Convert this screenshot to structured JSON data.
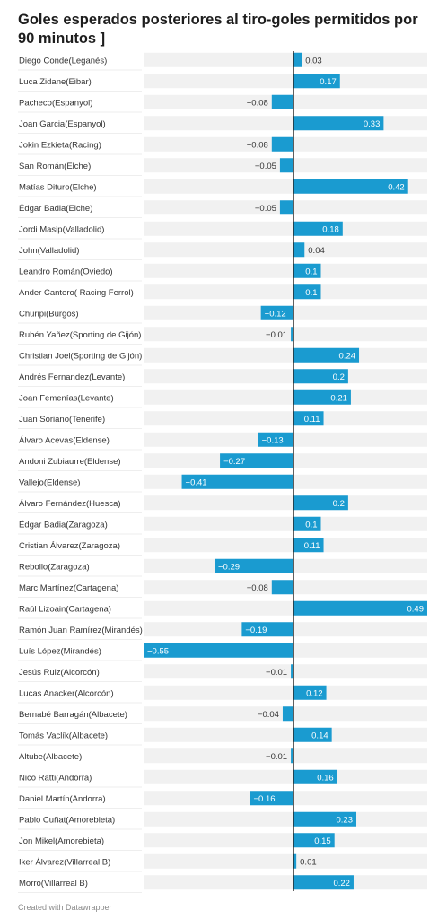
{
  "title": "Goles esperados posteriores al tiro-goles permitidos por 90 minutos ]",
  "footer": "Created with Datawrapper",
  "colors": {
    "bar": "#1a9bd0",
    "track": "#f1f1f1",
    "axis": "#222222",
    "text": "#333333"
  },
  "chart_data": {
    "type": "bar",
    "orientation": "horizontal",
    "title": "Goles esperados posteriores al tiro-goles permitidos por 90 minutos ]",
    "xlim": [
      -0.55,
      0.49
    ],
    "categories": [
      "Diego Conde(Leganés)",
      "Luca Zidane(Eibar)",
      "Pacheco(Espanyol)",
      "Joan Garcia(Espanyol)",
      "Jokin Ezkieta(Racing)",
      "San Román(Elche)",
      "Matías Dituro(Elche)",
      "Édgar Badia(Elche)",
      "Jordi Masip(Valladolid)",
      "John(Valladolid)",
      "Leandro Román(Oviedo)",
      "Ander Cantero( Racing Ferrol)",
      "Churipi(Burgos)",
      "Rubén Yañez(Sporting de Gijón)",
      "Christian Joel(Sporting de Gijón)",
      "Andrés Fernandez(Levante)",
      "Joan Femenías(Levante)",
      "Juan Soriano(Tenerife)",
      "Álvaro Acevas(Eldense)",
      "Andoni Zubiaurre(Eldense)",
      "Vallejo(Eldense)",
      "Álvaro Fernández(Huesca)",
      "Édgar Badia(Zaragoza)",
      "Cristian Álvarez(Zaragoza)",
      "Rebollo(Zaragoza)",
      "Marc Martínez(Cartagena)",
      "Raúl Lizoain(Cartagena)",
      "Ramón Juan Ramírez(Mirandés)",
      "Luís López(Mirandés)",
      "Jesús Ruiz(Alcorcón)",
      "Lucas Anacker(Alcorcón)",
      "Bernabé Barragán(Albacete)",
      "Tomás Vaclík(Albacete)",
      "Altube(Albacete)",
      "Nico Ratti(Andorra)",
      "Daniel Martín(Andorra)",
      "Pablo Cuñat(Amorebieta)",
      "Jon Mikel(Amorebieta)",
      "Iker Álvarez(Villarreal B)",
      "Morro(Villarreal B)"
    ],
    "values": [
      0.03,
      0.17,
      -0.08,
      0.33,
      -0.08,
      -0.05,
      0.42,
      -0.05,
      0.18,
      0.04,
      0.1,
      0.1,
      -0.12,
      -0.01,
      0.24,
      0.2,
      0.21,
      0.11,
      -0.13,
      -0.27,
      -0.41,
      0.2,
      0.1,
      0.11,
      -0.29,
      -0.08,
      0.49,
      -0.19,
      -0.55,
      -0.01,
      0.12,
      -0.04,
      0.14,
      -0.01,
      0.16,
      -0.16,
      0.23,
      0.15,
      0.01,
      0.22
    ],
    "value_labels": [
      "0.03",
      "0.17",
      "−0.08",
      "0.33",
      "−0.08",
      "−0.05",
      "0.42",
      "−0.05",
      "0.18",
      "0.04",
      "0.1",
      "0.1",
      "−0.12",
      "−0.01",
      "0.24",
      "0.2",
      "0.21",
      "0.11",
      "−0.13",
      "−0.27",
      "−0.41",
      "0.2",
      "0.1",
      "0.11",
      "−0.29",
      "−0.08",
      "0.49",
      "−0.19",
      "−0.55",
      "−0.01",
      "0.12",
      "−0.04",
      "0.14",
      "−0.01",
      "0.16",
      "−0.16",
      "0.23",
      "0.15",
      "0.01",
      "0.22"
    ]
  }
}
